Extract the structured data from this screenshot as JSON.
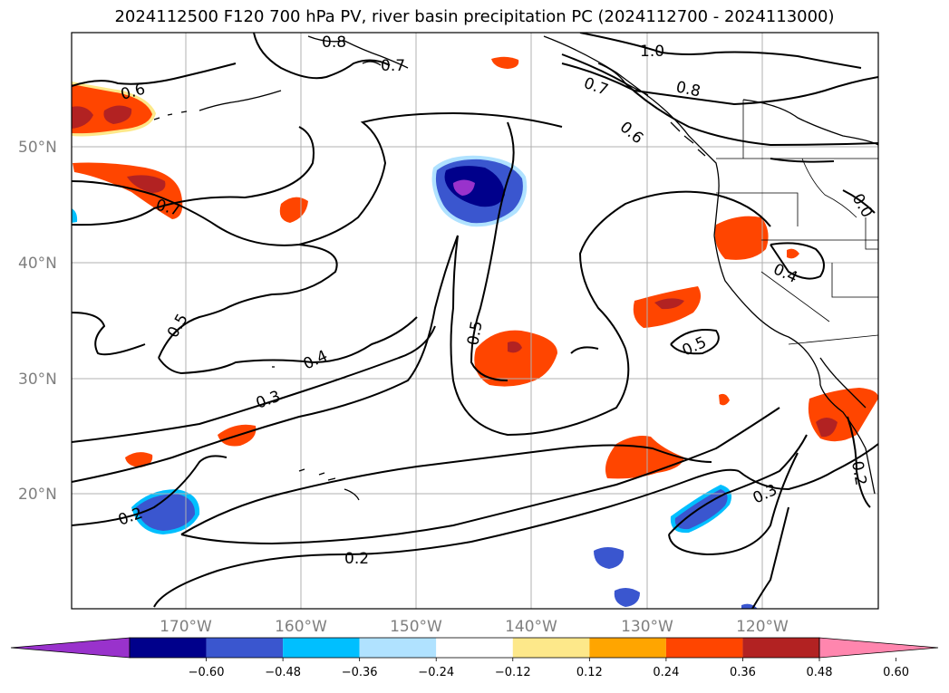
{
  "title": "2024112500 F120 700 hPa PV, river basin precipitation PC (2024112700 - 2024113000)",
  "lat_labels": [
    "50°N",
    "40°N",
    "30°N",
    "20°N"
  ],
  "lon_labels": [
    "170°W",
    "160°W",
    "150°W",
    "140°W",
    "130°W",
    "120°W"
  ],
  "contour_labels": [
    "1.0",
    "0.8",
    "0.8",
    "0.7",
    "0.7",
    "0.6",
    "0.6",
    "0.7",
    "0.5",
    "0.4",
    "0.3",
    "0.5",
    "0.5",
    "0.4",
    "0.2",
    "0.2",
    "0.3",
    "0.2",
    "0.0"
  ],
  "colorbar": {
    "colors": [
      "#9932cc",
      "#00008b",
      "#3a56cf",
      "#00bfff",
      "#b0e2ff",
      "#ffffff",
      "#fde88a",
      "#ffa500",
      "#ff4500",
      "#b22222",
      "#ff86ae"
    ],
    "ticks": [
      "−0.60",
      "−0.48",
      "−0.36",
      "−0.24",
      "−0.12",
      "0.12",
      "0.24",
      "0.36",
      "0.48",
      "0.60"
    ]
  }
}
